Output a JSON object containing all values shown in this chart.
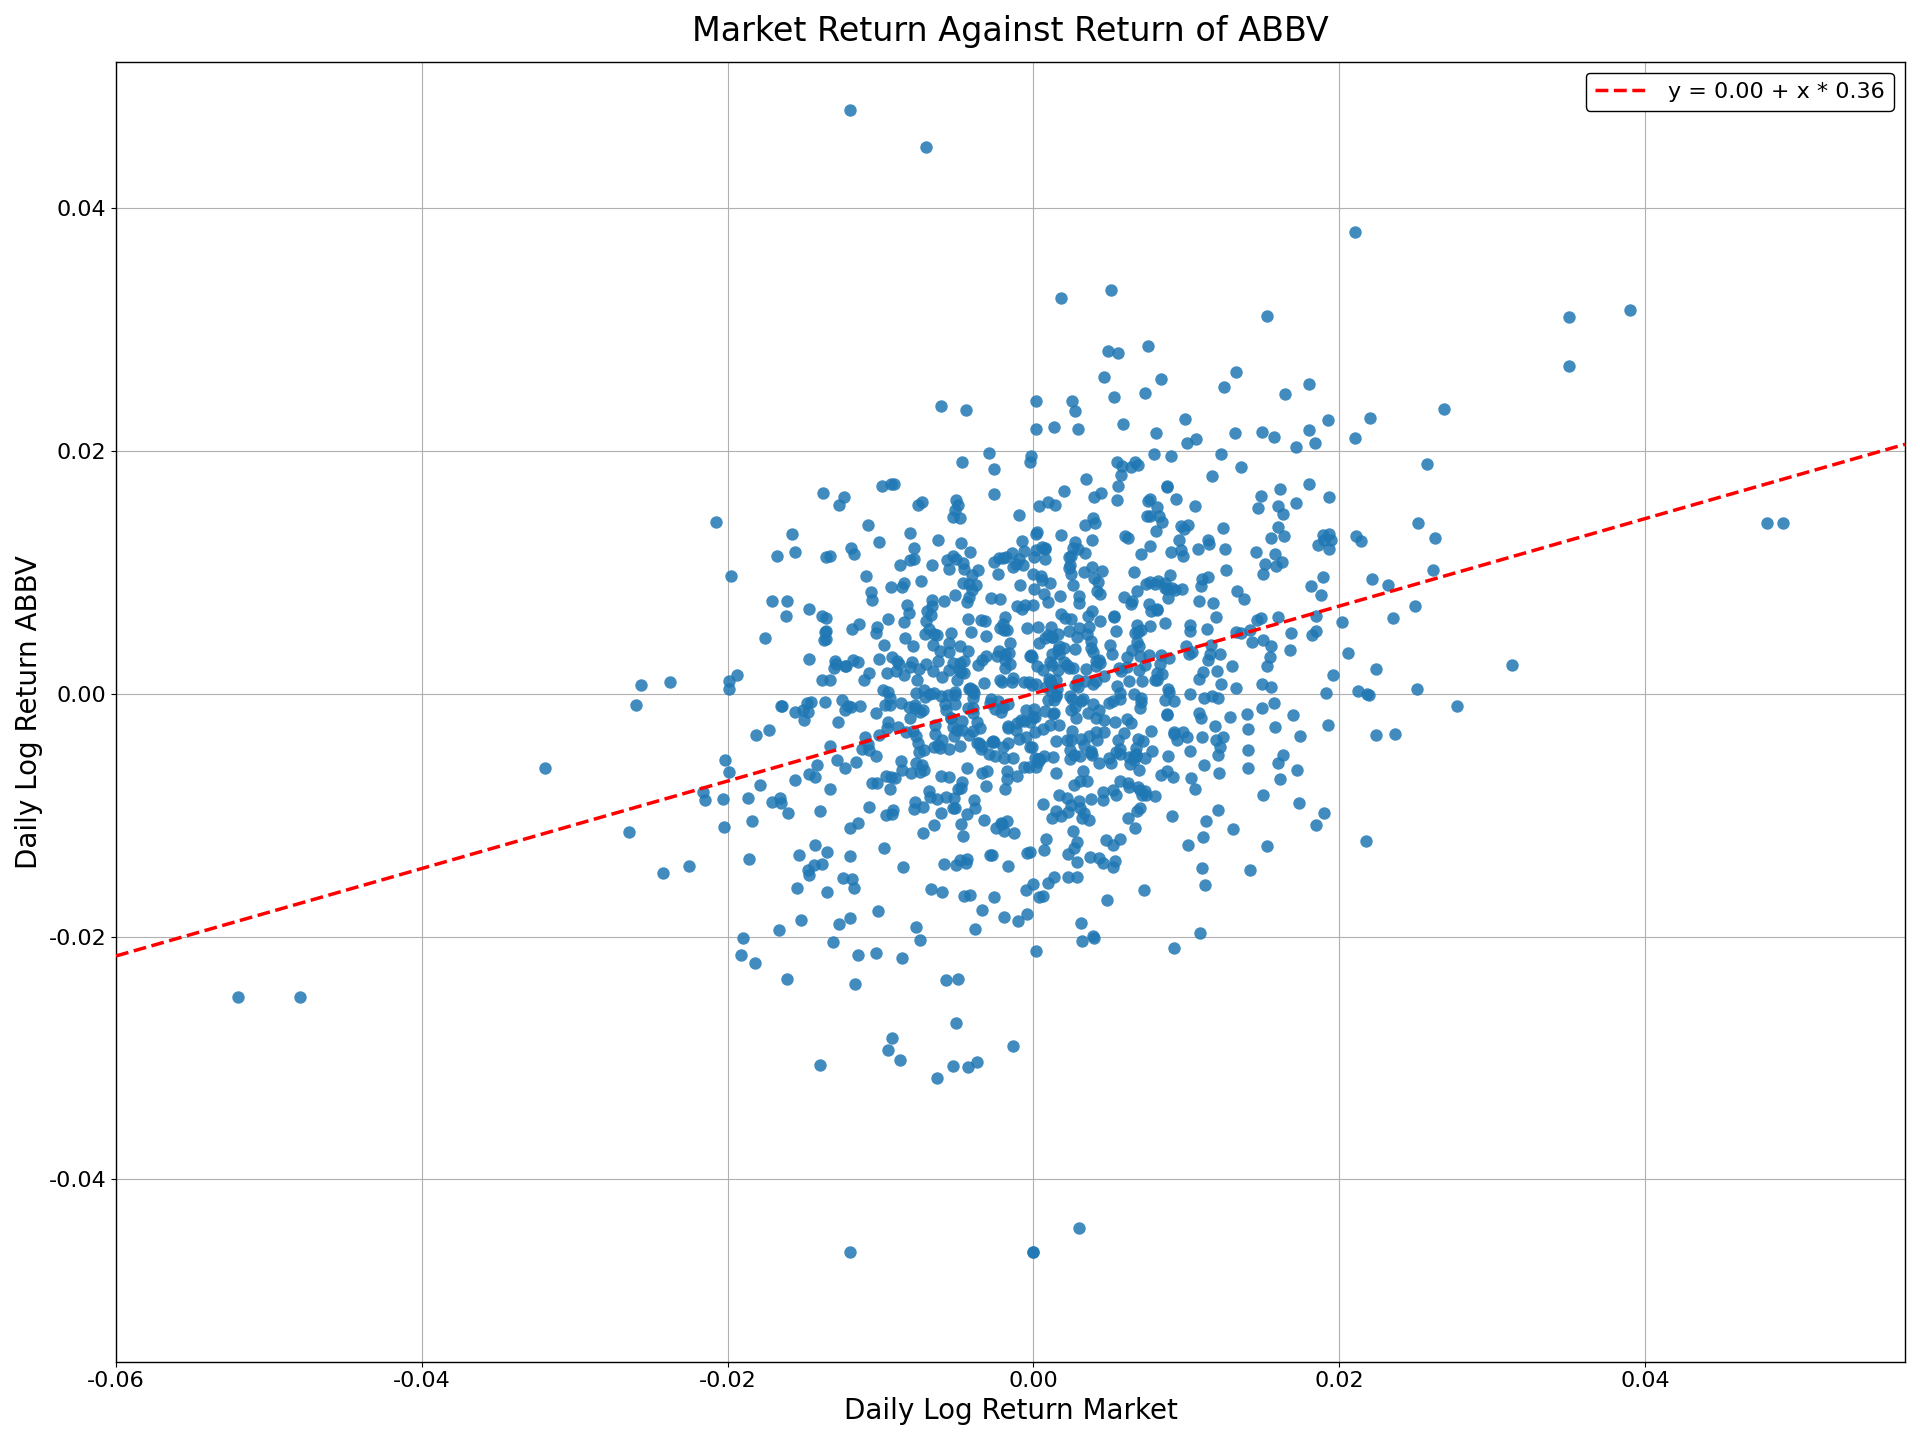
{
  "title": "Market Return Against Return of ABBV",
  "xlabel": "Daily Log Return Market",
  "ylabel": "Daily Log Return ABBV",
  "regression_label": "y = 0.00 + x * 0.36",
  "intercept": 0.0,
  "slope": 0.36,
  "dot_color": "#1f77b4",
  "line_color": "#ff0000",
  "xlim": [
    -0.06,
    0.057
  ],
  "ylim": [
    -0.055,
    0.052
  ],
  "seed": 42,
  "n_points": 1000,
  "market_std": 0.01,
  "abbv_noise_std": 0.01,
  "background_color": "#ffffff",
  "grid_color": "#b0b0b0",
  "dot_size": 80,
  "dot_alpha": 0.85,
  "line_width": 2.5,
  "title_fontsize": 24,
  "label_fontsize": 20,
  "tick_fontsize": 16,
  "legend_fontsize": 16
}
